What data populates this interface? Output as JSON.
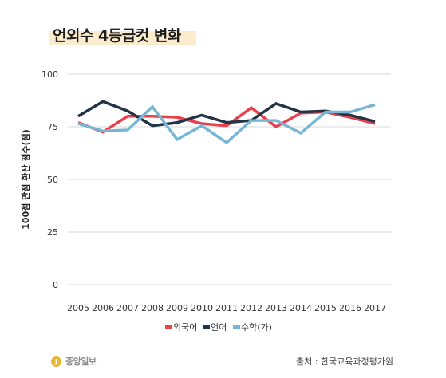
{
  "chart_data": {
    "type": "line",
    "title": "언외수 4등급컷 변화",
    "xlabel": "",
    "ylabel": "100점 만점 환산 점수(점)",
    "ylim": [
      0,
      100
    ],
    "yticks": [
      0,
      25,
      50,
      75,
      100
    ],
    "grid": true,
    "legend_position": "bottom",
    "categories": [
      "2005",
      "2006",
      "2007",
      "2008",
      "2009",
      "2010",
      "2011",
      "2012",
      "2013",
      "2014",
      "2015",
      "2016",
      "2017"
    ],
    "series": [
      {
        "name": "외국어",
        "color": "#e8424f",
        "values": [
          77,
          72.5,
          80,
          80,
          79.5,
          76.5,
          75.5,
          84,
          75,
          81.5,
          82,
          79.5,
          76.5
        ]
      },
      {
        "name": "언어",
        "color": "#243447",
        "values": [
          80,
          87,
          82.5,
          75.5,
          77,
          80.5,
          77,
          78,
          86,
          82,
          82.5,
          80.5,
          77.5
        ]
      },
      {
        "name": "수학(가)",
        "color": "#77b7d5",
        "values": [
          76.5,
          73,
          73.5,
          84.5,
          69,
          75.5,
          67.5,
          78,
          78,
          72,
          82,
          82,
          85.5
        ]
      }
    ]
  },
  "footer": {
    "brand": "중앙일보",
    "brand_mark": "J",
    "source": "출처 : 한국교육과정평가원"
  }
}
